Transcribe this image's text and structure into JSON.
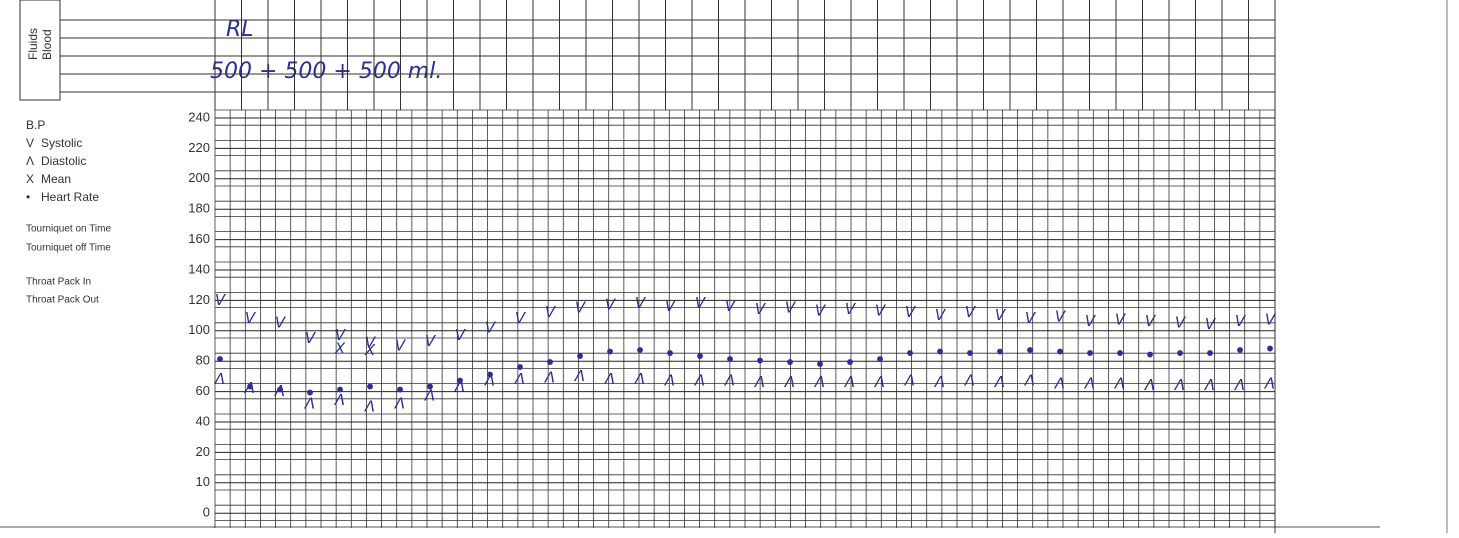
{
  "fluids_section": {
    "labels": [
      "Fluids",
      "Blood"
    ],
    "entries": [
      "RL",
      "500 + 500 + 500 ml."
    ]
  },
  "legend_title": "B.P",
  "notes": [
    "Tourniquet on Time",
    "Tourniquet off Time",
    "Throat Pack In",
    "Throat Pack Out"
  ],
  "chart_data": {
    "type": "symbol-plot",
    "ylim": [
      0,
      240
    ],
    "yticks": [
      240,
      220,
      200,
      180,
      160,
      140,
      120,
      100,
      80,
      60,
      40,
      20,
      10,
      0
    ],
    "grid": true,
    "series": [
      {
        "name": "Systolic",
        "symbol": "V",
        "color": "#2b2f96",
        "values": [
          120,
          108,
          105,
          95,
          97,
          92,
          90,
          93,
          97,
          102,
          108,
          112,
          115,
          117,
          118,
          116,
          118,
          116,
          114,
          115,
          113,
          114,
          113,
          112,
          110,
          112,
          110,
          108,
          109,
          106,
          107,
          106,
          105,
          104,
          106,
          107
        ]
      },
      {
        "name": "Diastolic",
        "symbol": "Λ",
        "color": "#2b2f96",
        "values": [
          68,
          62,
          60,
          52,
          54,
          50,
          52,
          57,
          63,
          67,
          68,
          69,
          70,
          68,
          68,
          67,
          67,
          67,
          66,
          66,
          66,
          66,
          66,
          67,
          66,
          67,
          66,
          67,
          65,
          65,
          65,
          64,
          64,
          64,
          64,
          65
        ]
      },
      {
        "name": "Mean",
        "symbol": "X",
        "color": "#2b2f96",
        "values": [
          null,
          null,
          null,
          null,
          88,
          87,
          null,
          null,
          null,
          null,
          null,
          null,
          null,
          null,
          null,
          null,
          null,
          null,
          null,
          null,
          null,
          null,
          null,
          null,
          null,
          null,
          null,
          null,
          null,
          null,
          null,
          null,
          null,
          null,
          null,
          null
        ]
      },
      {
        "name": "Heart Rate",
        "symbol": "•",
        "color": "#2b2f96",
        "values": [
          80,
          62,
          60,
          58,
          60,
          62,
          60,
          62,
          66,
          70,
          75,
          78,
          82,
          85,
          86,
          84,
          82,
          80,
          79,
          78,
          77,
          78,
          80,
          84,
          85,
          84,
          85,
          86,
          85,
          84,
          84,
          83,
          84,
          84,
          86,
          87
        ]
      }
    ]
  }
}
